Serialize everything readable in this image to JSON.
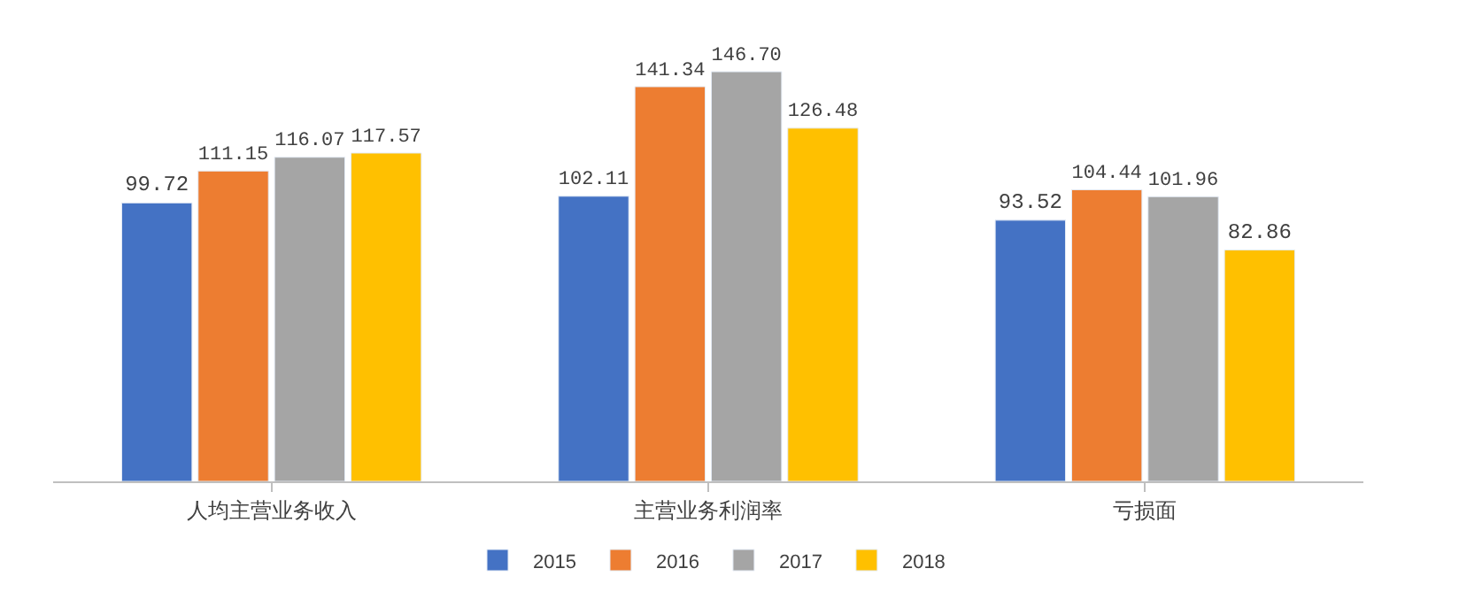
{
  "chart_data": {
    "type": "bar",
    "categories": [
      "人均主营业务收入",
      "主营业务利润率",
      "亏损面"
    ],
    "series": [
      {
        "name": "2015",
        "color": "#4472c4",
        "values": [
          99.72,
          102.11,
          93.52
        ],
        "value_labels": [
          "99.72",
          "102.11",
          "93.52"
        ]
      },
      {
        "name": "2016",
        "color": "#ed7d31",
        "values": [
          111.15,
          141.34,
          104.44
        ],
        "value_labels": [
          "111.15",
          "141.34",
          "104.44"
        ]
      },
      {
        "name": "2017",
        "color": "#a5a5a5",
        "values": [
          116.07,
          146.7,
          101.96
        ],
        "value_labels": [
          "116.07",
          "146.70",
          "101.96"
        ]
      },
      {
        "name": "2018",
        "color": "#ffc000",
        "values": [
          117.57,
          126.48,
          82.86
        ],
        "value_labels": [
          "117.57",
          "126.48",
          "82.86"
        ]
      }
    ],
    "legend": "bottom"
  }
}
